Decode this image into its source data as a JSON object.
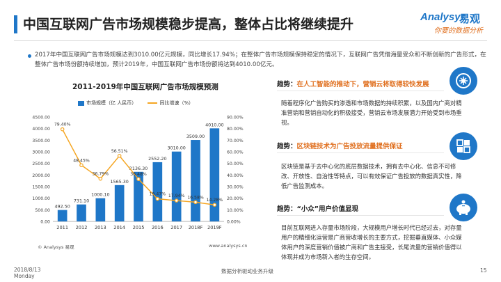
{
  "header": {
    "title": "中国互联网广告市场规模稳步提高，整体占比将继续提升",
    "logo_en": "Analysys",
    "logo_cn": "易观",
    "logo_sub": "你要的数据分析"
  },
  "intro": "2017年中国互联网广告市场规模达到3010.00亿元规模，同比增长17.94%；在整体广告市场规模保持稳定的情况下，互联网广告凭借海量受众和不断创新的广告形式，在整体广告市场份额持续增加，预计2019年，中国互联网广告市场份额将达到4010.00亿元。",
  "chart_data": {
    "type": "bar",
    "title": "2011-2019年中国互联网广告市场规模预测",
    "categories": [
      "2011",
      "2012",
      "2013",
      "2014",
      "2015",
      "2016",
      "2017",
      "2018F",
      "2019F"
    ],
    "series": [
      {
        "name": "市场规模（亿 人民币）",
        "type": "bar",
        "axis": "left",
        "color": "#1f77c8",
        "values": [
          492.5,
          731.1,
          1000.1,
          1565.3,
          2136.3,
          2552.2,
          3010.0,
          3509.0,
          4010.0
        ],
        "labels": [
          "492.50",
          "731.10",
          "1000.10",
          "1565.30",
          "2136.30",
          "2552.20",
          "3010.00",
          "3509.00",
          "4010.00"
        ]
      },
      {
        "name": "同比增速（%）",
        "type": "line",
        "axis": "right",
        "color": "#f5a623",
        "values": [
          79.4,
          48.45,
          36.79,
          56.51,
          36.48,
          19.47,
          17.94,
          16.58,
          14.28
        ],
        "labels": [
          "79.40%",
          "48.45%",
          "36.79%",
          "56.51%",
          "36.48%",
          "19.47%",
          "17.94%",
          "16.58%",
          "14.28%"
        ]
      }
    ],
    "ylim_left": [
      0,
      4500
    ],
    "yticks_left": [
      "0.00",
      "500.00",
      "1000.00",
      "1500.00",
      "2000.00",
      "2500.00",
      "3000.00",
      "3500.00",
      "4000.00",
      "4500.00"
    ],
    "ylim_right": [
      0,
      90
    ],
    "yticks_right": [
      "0.00%",
      "10.00%",
      "20.00%",
      "30.00%",
      "40.00%",
      "50.00%",
      "60.00%",
      "70.00%",
      "80.00%",
      "90.00%"
    ],
    "legend": "top",
    "grid": false
  },
  "source": "© Analysys 易观",
  "site": "www.analysys.cn",
  "trends": [
    {
      "prefix": "趋势：",
      "title": "在人工智能的推动下，营销云将取得较快发展",
      "highlight": true,
      "icon": "ai-brain-icon",
      "body": "随着程序化广告购买的渗透和市场数据的持续积累，以及国内广商对精准营销和营销自动化的积极接受，营销云市场发展潜力开始受到市场重视。"
    },
    {
      "prefix": "趋势：",
      "title": "区块链技术为广告投放流量提供保证",
      "highlight": true,
      "icon": "blockchain-icon",
      "body": "区块链是基于去中心化的底层数据技术，拥有去中心化、信息不可修改、开放性、自治性等特点，可以有效保证广告投放的数据真实性，降低广告监测成本。"
    },
    {
      "prefix": "趋势：",
      "title": "“小众”用户价值显现",
      "highlight": false,
      "icon": "piggy-bank-icon",
      "body": "目前互联网进入存量市场阶段，大规模用户增长时代已经过去，对存量用户的精细化运营是广商营收增长的主要方式，挖掘垂直媒体、小众媒体用户的深度营销价值被广商和广告主接受，长尾流量的营销价值得以体现并成为市场新入者的生存空间。"
    }
  ],
  "footer": {
    "date": "2018/8/13",
    "weekday": "Monday",
    "center": "数据分析驱动业务升级",
    "page": "15"
  }
}
